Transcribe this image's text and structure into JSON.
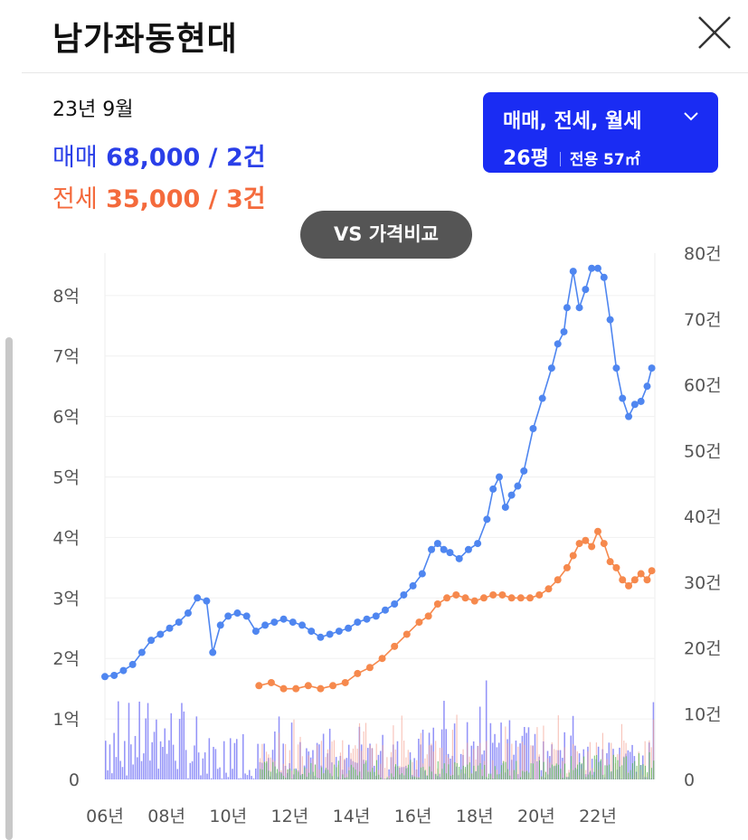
{
  "header": {
    "title": "남가좌동현대"
  },
  "summary": {
    "date": "23년 9월",
    "sale_label": "매매",
    "sale_value": "68,000 / 2건",
    "jeonse_label": "전세",
    "jeonse_value": "35,000 / 3건"
  },
  "filter": {
    "types": "매매, 전세, 월세",
    "size": "26평",
    "area": "전용 57㎡"
  },
  "compare_label": "VS 가격비교",
  "colors": {
    "sale": "#4f86f0",
    "jeonse": "#f6894d",
    "accent": "#1a2cf3",
    "bar_sale": "#6f6ff5",
    "bar_jeonse": "#f39b8a",
    "bar_rent": "#4cb84c"
  },
  "chart_data": {
    "type": "line",
    "y_left_ticks": [
      "0",
      "1억",
      "2억",
      "3억",
      "4억",
      "5억",
      "6억",
      "7억",
      "8억"
    ],
    "y_right_ticks": [
      "0",
      "10건",
      "20건",
      "30건",
      "40건",
      "50건",
      "60건",
      "70건",
      "80건"
    ],
    "x_ticks": [
      "06년",
      "08년",
      "10년",
      "12년",
      "14년",
      "16년",
      "18년",
      "20년",
      "22년"
    ],
    "x_tick_years": [
      2006,
      2008,
      2010,
      2012,
      2014,
      2016,
      2018,
      2020,
      2022
    ],
    "xlim": [
      2006.0,
      2023.85
    ],
    "ylim_price_eok": [
      0,
      8.7
    ],
    "ylim_count": [
      0,
      80
    ],
    "series": [
      {
        "name": "매매",
        "axis": "left",
        "x": [
          2006.0,
          2006.3,
          2006.6,
          2006.9,
          2007.2,
          2007.5,
          2007.8,
          2008.1,
          2008.4,
          2008.7,
          2009.0,
          2009.3,
          2009.5,
          2009.75,
          2010.0,
          2010.3,
          2010.6,
          2010.9,
          2011.2,
          2011.5,
          2011.8,
          2012.1,
          2012.4,
          2012.7,
          2013.0,
          2013.3,
          2013.6,
          2013.9,
          2014.2,
          2014.5,
          2014.8,
          2015.1,
          2015.4,
          2015.7,
          2016.0,
          2016.3,
          2016.6,
          2016.8,
          2017.0,
          2017.2,
          2017.5,
          2017.8,
          2018.1,
          2018.4,
          2018.6,
          2018.8,
          2019.0,
          2019.2,
          2019.4,
          2019.6,
          2019.9,
          2020.2,
          2020.5,
          2020.7,
          2020.9,
          2021.0,
          2021.2,
          2021.4,
          2021.6,
          2021.8,
          2022.0,
          2022.2,
          2022.4,
          2022.6,
          2022.8,
          2023.0,
          2023.2,
          2023.4,
          2023.6,
          2023.75
        ],
        "values": [
          1.7,
          1.72,
          1.8,
          1.9,
          2.1,
          2.3,
          2.4,
          2.5,
          2.6,
          2.75,
          3.0,
          2.95,
          2.1,
          2.55,
          2.7,
          2.75,
          2.7,
          2.45,
          2.55,
          2.6,
          2.65,
          2.6,
          2.55,
          2.45,
          2.35,
          2.4,
          2.45,
          2.5,
          2.6,
          2.65,
          2.7,
          2.8,
          2.9,
          3.05,
          3.2,
          3.4,
          3.8,
          3.9,
          3.8,
          3.75,
          3.65,
          3.8,
          3.9,
          4.3,
          4.8,
          5.0,
          4.5,
          4.7,
          4.85,
          5.1,
          5.8,
          6.3,
          6.8,
          7.2,
          7.4,
          7.8,
          8.4,
          7.8,
          8.1,
          8.45,
          8.45,
          8.3,
          7.6,
          6.8,
          6.3,
          6.0,
          6.2,
          6.25,
          6.5,
          6.8
        ]
      },
      {
        "name": "전세",
        "axis": "left",
        "x": [
          2011.0,
          2011.4,
          2011.8,
          2012.2,
          2012.6,
          2013.0,
          2013.4,
          2013.8,
          2014.2,
          2014.6,
          2015.0,
          2015.4,
          2015.8,
          2016.2,
          2016.5,
          2016.8,
          2017.1,
          2017.4,
          2017.7,
          2018.0,
          2018.3,
          2018.6,
          2018.9,
          2019.2,
          2019.5,
          2019.8,
          2020.1,
          2020.4,
          2020.7,
          2021.0,
          2021.2,
          2021.4,
          2021.6,
          2021.8,
          2022.0,
          2022.2,
          2022.4,
          2022.6,
          2022.8,
          2023.0,
          2023.2,
          2023.4,
          2023.6,
          2023.75
        ],
        "values": [
          1.55,
          1.6,
          1.5,
          1.5,
          1.55,
          1.5,
          1.55,
          1.6,
          1.75,
          1.85,
          2.0,
          2.2,
          2.4,
          2.6,
          2.7,
          2.9,
          3.0,
          3.05,
          3.0,
          2.95,
          3.0,
          3.05,
          3.05,
          3.0,
          3.0,
          3.0,
          3.05,
          3.15,
          3.3,
          3.5,
          3.7,
          3.9,
          3.95,
          3.85,
          4.1,
          3.9,
          3.6,
          3.5,
          3.3,
          3.2,
          3.3,
          3.4,
          3.3,
          3.45
        ]
      }
    ]
  }
}
